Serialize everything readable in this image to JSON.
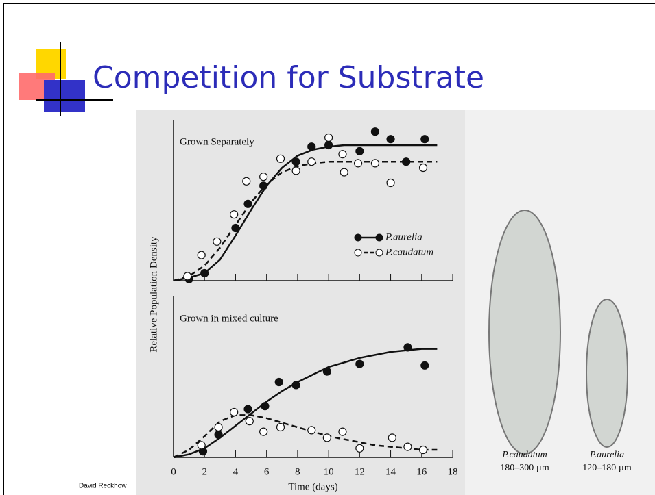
{
  "slide": {
    "title": "Competition for Substrate",
    "footer": "David Reckhow"
  },
  "figure": {
    "ylabel": "Relative Population Density"
  },
  "images": [
    {
      "name": "P.caudatum",
      "caption": "180–300 µm"
    },
    {
      "name": "P.aurelia",
      "caption": "120–180 µm"
    }
  ],
  "chart_data": [
    {
      "type": "scatter",
      "title": "Grown Separately",
      "xlim": [
        0,
        18
      ],
      "ylim": [
        0,
        1
      ],
      "legend": "center right",
      "fit_x": [
        0,
        1,
        2,
        3,
        4,
        5,
        6,
        7,
        8,
        9,
        10,
        11,
        12,
        13,
        14,
        15,
        16,
        17
      ],
      "series": [
        {
          "name": "P.aurelia",
          "color": "#111111",
          "line_style": "solid",
          "x": [
            1,
            2,
            4,
            4.8,
            5.8,
            7.9,
            8.9,
            10,
            12,
            13,
            14,
            15,
            16.2
          ],
          "values": [
            0.01,
            0.05,
            0.35,
            0.51,
            0.63,
            0.79,
            0.89,
            0.9,
            0.86,
            0.99,
            0.94,
            0.79,
            0.94
          ],
          "fit": [
            0.0,
            0.02,
            0.05,
            0.14,
            0.3,
            0.47,
            0.63,
            0.75,
            0.83,
            0.87,
            0.89,
            0.9,
            0.9,
            0.9,
            0.9,
            0.9,
            0.9,
            0.9
          ]
        },
        {
          "name": "P.caudatum",
          "color": "#ffffff",
          "line_style": "dashed",
          "x": [
            0.9,
            1.8,
            2.8,
            3.9,
            4.7,
            5.8,
            6.9,
            7.9,
            8.9,
            10,
            10.9,
            11,
            11.9,
            13,
            14,
            16.1
          ],
          "values": [
            0.03,
            0.17,
            0.26,
            0.44,
            0.66,
            0.69,
            0.81,
            0.73,
            0.79,
            0.95,
            0.84,
            0.72,
            0.78,
            0.78,
            0.65,
            0.75
          ],
          "fit": [
            0.0,
            0.03,
            0.1,
            0.22,
            0.37,
            0.52,
            0.64,
            0.72,
            0.76,
            0.78,
            0.79,
            0.79,
            0.79,
            0.79,
            0.79,
            0.79,
            0.79,
            0.79
          ]
        }
      ]
    },
    {
      "type": "scatter",
      "title": "Grown in mixed culture",
      "xlabel": "Time (days)",
      "xlim": [
        0,
        18
      ],
      "ylim": [
        0,
        1
      ],
      "xticks": [
        0,
        2,
        4,
        6,
        8,
        10,
        12,
        14,
        16,
        18
      ],
      "fit_x": [
        0,
        1,
        2,
        3,
        4,
        5,
        6,
        7,
        8,
        9,
        10,
        11,
        12,
        13,
        14,
        15,
        16,
        17
      ],
      "series": [
        {
          "name": "P.aurelia",
          "color": "#111111",
          "line_style": "solid",
          "x": [
            1.9,
            2.9,
            4.8,
            5.9,
            6.8,
            7.9,
            9.9,
            12,
            15.1,
            16.2
          ],
          "values": [
            0.04,
            0.15,
            0.32,
            0.34,
            0.5,
            0.48,
            0.57,
            0.62,
            0.73,
            0.61
          ],
          "fit": [
            0.0,
            0.02,
            0.06,
            0.13,
            0.21,
            0.29,
            0.37,
            0.44,
            0.5,
            0.55,
            0.6,
            0.63,
            0.66,
            0.68,
            0.7,
            0.71,
            0.72,
            0.72
          ]
        },
        {
          "name": "P.caudatum",
          "color": "#ffffff",
          "line_style": "dashed",
          "x": [
            1.8,
            2.9,
            3.9,
            4.9,
            5.8,
            6.9,
            8.9,
            9.9,
            10.9,
            12,
            14.1,
            15.1,
            16.1
          ],
          "values": [
            0.08,
            0.2,
            0.3,
            0.24,
            0.17,
            0.2,
            0.18,
            0.13,
            0.17,
            0.06,
            0.13,
            0.07,
            0.05
          ],
          "fit": [
            0.0,
            0.05,
            0.14,
            0.24,
            0.28,
            0.28,
            0.26,
            0.23,
            0.2,
            0.17,
            0.14,
            0.12,
            0.1,
            0.08,
            0.07,
            0.06,
            0.05,
            0.05
          ]
        }
      ]
    }
  ]
}
